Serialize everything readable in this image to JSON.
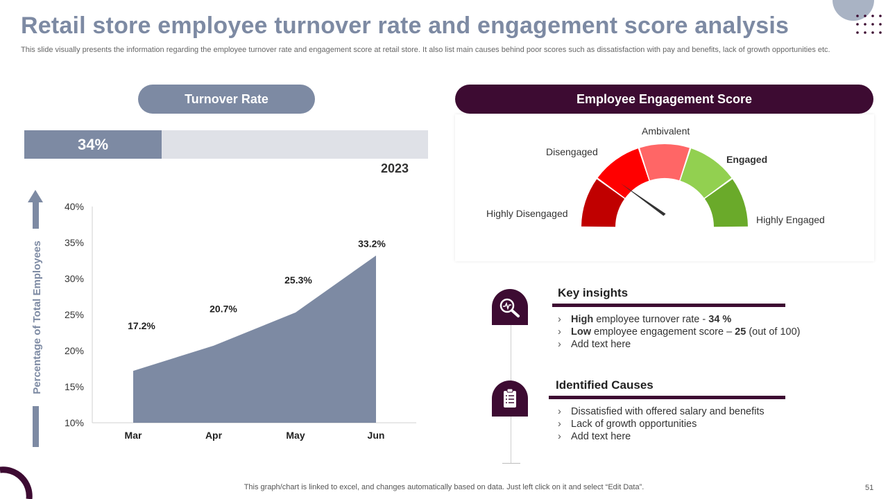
{
  "header": {
    "title": "Retail store employee turnover rate and engagement score analysis",
    "subtitle": "This slide visually presents the information regarding the employee turnover rate and engagement score at retail store. It also list main causes behind poor scores such as dissatisfaction with pay and benefits, lack of growth opportunities etc."
  },
  "turnover": {
    "pill_label": "Turnover  Rate",
    "bar_label": "34%",
    "bar_value": 34,
    "year": "2023"
  },
  "engagement": {
    "pill_label": "Employee Engagement Score",
    "score": 25,
    "segments": [
      {
        "label": "Highly Disengaged",
        "color": "#c00000"
      },
      {
        "label": "Disengaged",
        "color": "#ff0000"
      },
      {
        "label": "Ambivalent",
        "color": "#ff6666"
      },
      {
        "label": "Engaged",
        "color": "#92d050"
      },
      {
        "label": "Highly Engaged",
        "color": "#6aaa2a"
      }
    ]
  },
  "chart_data": {
    "type": "area",
    "categories": [
      "Mar",
      "Apr",
      "May",
      "Jun"
    ],
    "series": [
      {
        "name": "Turnover Rate",
        "values": [
          17.2,
          20.7,
          25.3,
          33.2
        ]
      }
    ],
    "data_labels": [
      "17.2%",
      "20.7%",
      "25.3%",
      "33.2%"
    ],
    "ylabel": "Percentage of Total Employees",
    "ylim": [
      10,
      40
    ],
    "yticks": [
      10,
      15,
      20,
      25,
      30,
      35,
      40
    ],
    "ytick_labels": [
      "10%",
      "15%",
      "20%",
      "25%",
      "30%",
      "35%",
      "40%"
    ],
    "fill_color": "#7d8aa3"
  },
  "insights": {
    "title": "Key insights",
    "items": [
      {
        "bold": "High",
        "text": " employee turnover rate - ",
        "bold2": "34 %",
        "tail": ""
      },
      {
        "bold": "Low",
        "text": " employee engagement score – ",
        "bold2": "25",
        "tail": " (out of 100)"
      },
      {
        "bold": "",
        "text": "Add text here",
        "bold2": "",
        "tail": ""
      }
    ]
  },
  "causes": {
    "title": "Identified Causes",
    "items": [
      "Dissatisfied with offered salary and benefits",
      "Lack of growth opportunities",
      "Add text here"
    ]
  },
  "bullet_marker": "›",
  "footer": {
    "note": "This graph/chart is linked to excel,  and changes automatically based on data. Just left click on it and select “Edit Data”.",
    "page_number": "51"
  },
  "colors": {
    "accent_dark": "#3d0b32",
    "accent_blue": "#7d8aa3"
  }
}
